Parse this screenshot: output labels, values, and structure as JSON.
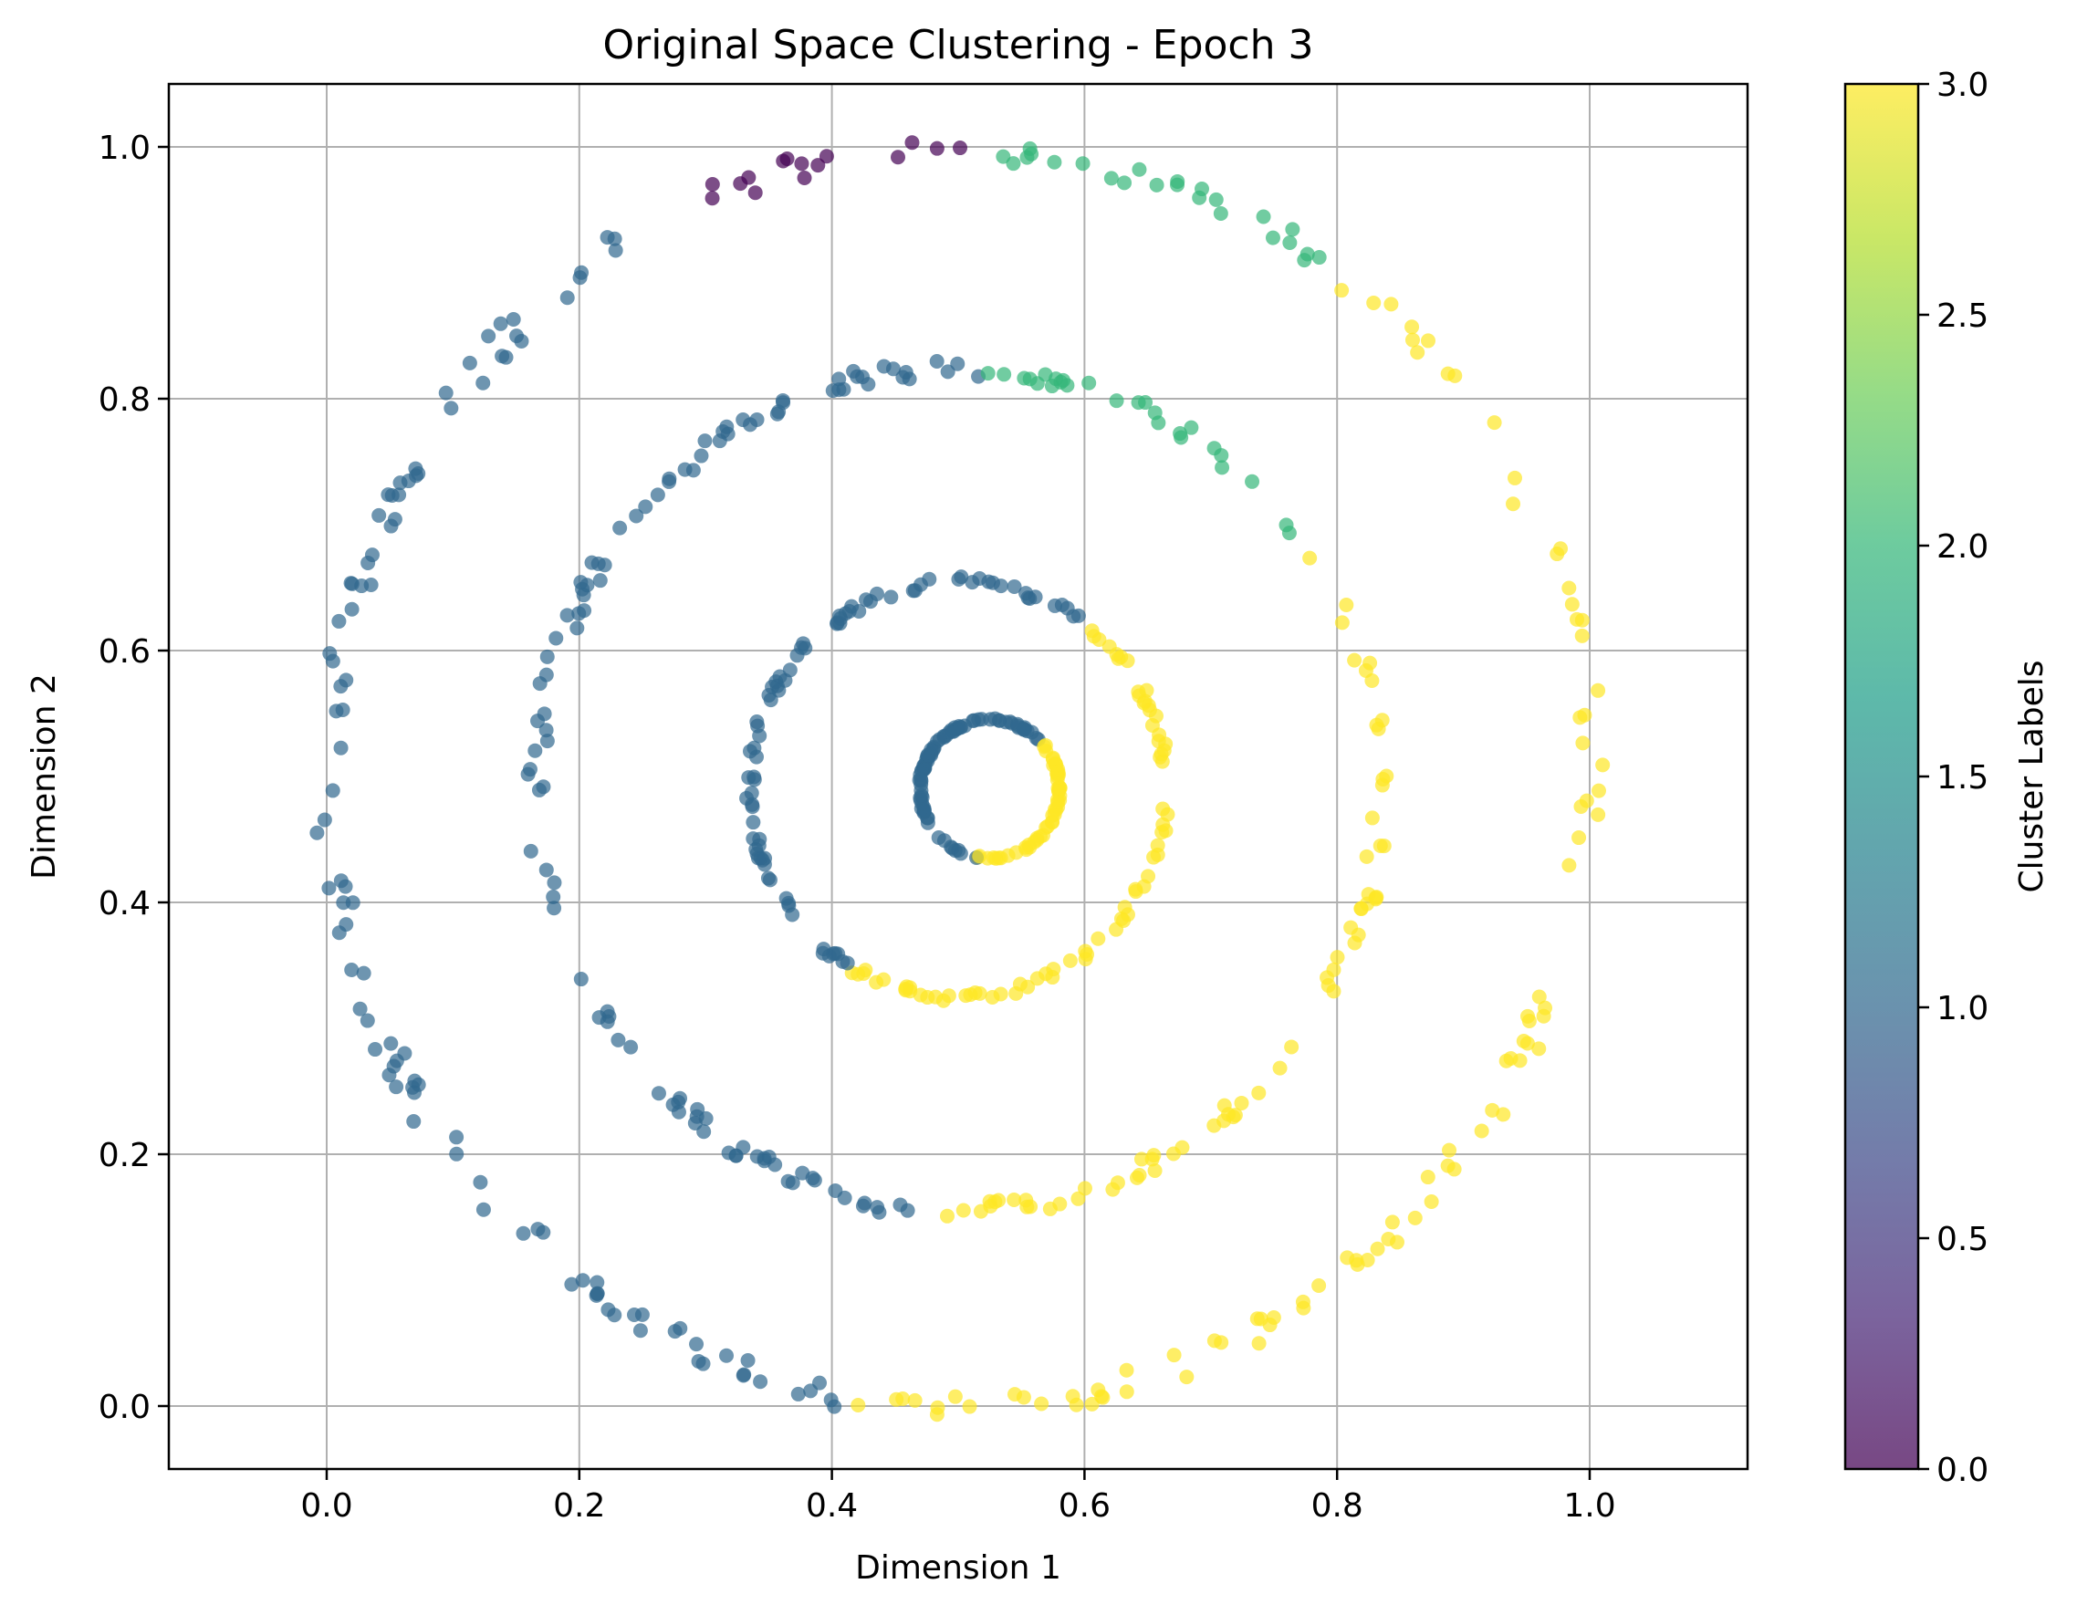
{
  "chart_data": {
    "type": "scatter",
    "title": "Original Space Clustering - Epoch 3",
    "xlabel": "Dimension 1",
    "ylabel": "Dimension 2",
    "xlim": [
      -0.125,
      1.125
    ],
    "ylim": [
      -0.05,
      1.05
    ],
    "xticks": [
      "0.0",
      "0.2",
      "0.4",
      "0.6",
      "0.8",
      "1.0"
    ],
    "yticks": [
      "0.0",
      "0.2",
      "0.4",
      "0.6",
      "0.8",
      "1.0"
    ],
    "grid": true,
    "point_alpha": 0.7,
    "colormap": "viridis",
    "colorbar": {
      "label": "Cluster Labels",
      "range": [
        0.0,
        3.0
      ],
      "ticks": [
        "0.0",
        "0.5",
        "1.0",
        "1.5",
        "2.0",
        "2.5",
        "3.0"
      ]
    },
    "cluster_colors": {
      "0": "#440154",
      "1": "#31688e",
      "2": "#35b779",
      "3": "#fde725"
    },
    "rings": [
      {
        "center": [
          0.525,
          0.49
        ],
        "radius": 0.055,
        "n_points": 140,
        "segments": [
          {
            "from_deg": -40,
            "to_deg": 40,
            "label": 3
          },
          {
            "from_deg": 40,
            "to_deg": 260,
            "label": 1
          },
          {
            "from_deg": 260,
            "to_deg": 320,
            "label": 3
          }
        ]
      },
      {
        "center": [
          0.5,
          0.49
        ],
        "radius": 0.165,
        "n_points": 160,
        "segments": [
          {
            "from_deg": -65,
            "to_deg": 55,
            "label": 3
          },
          {
            "from_deg": 55,
            "to_deg": 240,
            "label": 1
          },
          {
            "from_deg": 240,
            "to_deg": 295,
            "label": 3
          }
        ]
      },
      {
        "center": [
          0.5,
          0.49
        ],
        "radius": 0.335,
        "n_points": 200,
        "segments": [
          {
            "from_deg": -90,
            "to_deg": 35,
            "label": 3
          },
          {
            "from_deg": 35,
            "to_deg": 87,
            "label": 2
          },
          {
            "from_deg": 87,
            "to_deg": 265,
            "label": 1
          },
          {
            "from_deg": 265,
            "to_deg": 270,
            "label": 3
          }
        ]
      },
      {
        "center": [
          0.5,
          0.5
        ],
        "radius": 0.5,
        "n_points": 230,
        "segments": [
          {
            "from_deg": -90,
            "to_deg": 52,
            "label": 3
          },
          {
            "from_deg": 52,
            "to_deg": 87,
            "label": 2
          },
          {
            "from_deg": 87,
            "to_deg": 122,
            "label": 0
          },
          {
            "from_deg": 122,
            "to_deg": 260,
            "label": 1
          },
          {
            "from_deg": 260,
            "to_deg": 270,
            "label": 3
          }
        ]
      }
    ]
  }
}
